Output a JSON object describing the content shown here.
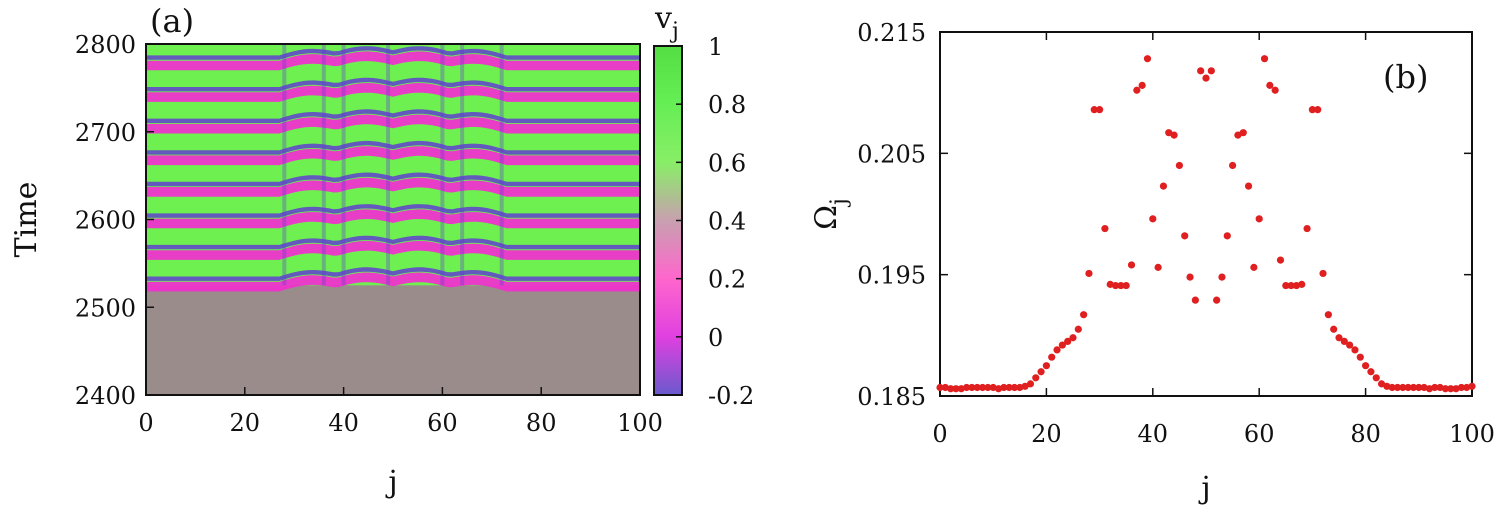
{
  "chart_data": [
    {
      "type": "heatmap",
      "panel_label": "(a)",
      "xlabel": "j",
      "ylabel": "Time",
      "xlim": [
        0,
        100
      ],
      "ylim": [
        2400,
        2800
      ],
      "x_ticks": [
        "0",
        "20",
        "40",
        "60",
        "80",
        "100"
      ],
      "y_ticks": [
        "2400",
        "2500",
        "2600",
        "2700",
        "2800"
      ],
      "colorbar": {
        "label": "v",
        "label_sub": "j",
        "range": [
          -0.2,
          1
        ],
        "ticks": [
          "-0.2",
          "0",
          "0.2",
          "0.4",
          "0.6",
          "0.8",
          "1"
        ],
        "colors": [
          "#6a5acd",
          "#e040e0",
          "#ff66cc",
          "#c8a0b0",
          "#88ee66",
          "#66ee55",
          "#55dd44"
        ]
      },
      "onset_time": 2525,
      "oscillation_period": 36,
      "colors": {
        "background": "#9a8c8a",
        "high": "#6ef050",
        "low": "#ee33cc",
        "trough": "#6040d0"
      }
    },
    {
      "type": "scatter",
      "panel_label": "(b)",
      "xlabel": "j",
      "ylabel": "Ω",
      "ylabel_sub": "j",
      "xlim": [
        0,
        100
      ],
      "ylim": [
        0.185,
        0.215
      ],
      "x_ticks": [
        "0",
        "20",
        "40",
        "60",
        "80",
        "100"
      ],
      "y_ticks": [
        "0.185",
        "0.195",
        "0.205",
        "0.215"
      ],
      "marker_color": "#e02020",
      "x": [
        0,
        1,
        2,
        3,
        4,
        5,
        6,
        7,
        8,
        9,
        10,
        11,
        12,
        13,
        14,
        15,
        16,
        17,
        18,
        19,
        20,
        21,
        22,
        23,
        24,
        25,
        26,
        27,
        28,
        29,
        30,
        31,
        32,
        33,
        34,
        35,
        36,
        37,
        38,
        39,
        40,
        41,
        42,
        43,
        44,
        45,
        46,
        47,
        48,
        49,
        50,
        51,
        52,
        53,
        54,
        55,
        56,
        57,
        58,
        59,
        60,
        61,
        62,
        63,
        64,
        65,
        66,
        67,
        68,
        69,
        70,
        71,
        72,
        73,
        74,
        75,
        76,
        77,
        78,
        79,
        80,
        81,
        82,
        83,
        84,
        85,
        86,
        87,
        88,
        89,
        90,
        91,
        92,
        93,
        94,
        95,
        96,
        97,
        98,
        99,
        100
      ],
      "y": [
        0.1857,
        0.1857,
        0.1856,
        0.1856,
        0.1856,
        0.1857,
        0.1857,
        0.1857,
        0.1857,
        0.1857,
        0.1857,
        0.1856,
        0.1857,
        0.1857,
        0.1857,
        0.1857,
        0.1858,
        0.186,
        0.1865,
        0.187,
        0.1875,
        0.1882,
        0.1888,
        0.1892,
        0.1895,
        0.1898,
        0.1905,
        0.1917,
        0.1951,
        0.2086,
        0.2086,
        0.1988,
        0.1942,
        0.1941,
        0.1941,
        0.1941,
        0.1958,
        0.2102,
        0.2106,
        0.2128,
        0.1996,
        0.1956,
        0.2023,
        0.2067,
        0.2065,
        0.204,
        0.1982,
        0.1948,
        0.1929,
        0.2118,
        0.2112,
        0.2118,
        0.1929,
        0.1948,
        0.1982,
        0.204,
        0.2065,
        0.2067,
        0.2023,
        0.1956,
        0.1996,
        0.2128,
        0.2106,
        0.2102,
        0.1962,
        0.1941,
        0.1941,
        0.1941,
        0.1942,
        0.1988,
        0.2086,
        0.2086,
        0.1951,
        0.1917,
        0.1905,
        0.1898,
        0.1895,
        0.1892,
        0.1888,
        0.1882,
        0.1875,
        0.187,
        0.1865,
        0.186,
        0.1858,
        0.1857,
        0.1857,
        0.1857,
        0.1857,
        0.1857,
        0.1857,
        0.1857,
        0.1856,
        0.1857,
        0.1857,
        0.1856,
        0.1856,
        0.1856,
        0.1857,
        0.1857,
        0.1858
      ]
    }
  ]
}
